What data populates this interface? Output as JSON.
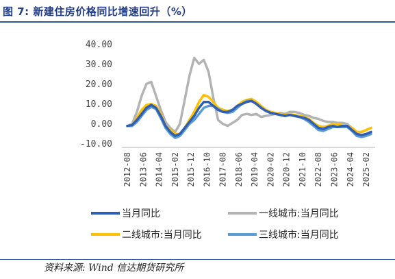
{
  "header": {
    "title": "图 7:  新建住房价格同比增速回升（%）"
  },
  "footer": {
    "source": "资料来源:    Wind  信达期货研究所"
  },
  "chart_data": {
    "type": "line",
    "title": "",
    "xlabel": "",
    "ylabel": "",
    "ylim": [
      -10,
      40
    ],
    "y_ticks": [
      "40.00",
      "30.00",
      "20.00",
      "10.00",
      "0.00",
      "-10.00"
    ],
    "y_tick_values": [
      40,
      30,
      20,
      10,
      0,
      -10
    ],
    "x_tick_labels": [
      "2012-08",
      "2013-06",
      "2014-04",
      "2015-02",
      "2015-12",
      "2016-10",
      "2017-08",
      "2018-06",
      "2019-04",
      "2020-02",
      "2020-12",
      "2021-10",
      "2022-08",
      "2023-06",
      "2024-04",
      "2025-02"
    ],
    "grid": false,
    "legend_position": "bottom",
    "x": [
      "2012-08",
      "2012-11",
      "2013-02",
      "2013-05",
      "2013-08",
      "2013-11",
      "2014-02",
      "2014-05",
      "2014-08",
      "2014-11",
      "2015-02",
      "2015-05",
      "2015-08",
      "2015-11",
      "2016-02",
      "2016-05",
      "2016-08",
      "2016-11",
      "2017-02",
      "2017-05",
      "2017-08",
      "2017-11",
      "2018-02",
      "2018-05",
      "2018-08",
      "2018-11",
      "2019-02",
      "2019-05",
      "2019-08",
      "2019-11",
      "2020-02",
      "2020-05",
      "2020-08",
      "2020-11",
      "2021-02",
      "2021-05",
      "2021-08",
      "2021-11",
      "2022-02",
      "2022-05",
      "2022-08",
      "2022-11",
      "2023-02",
      "2023-05",
      "2023-08",
      "2023-11",
      "2024-02",
      "2024-05",
      "2024-08",
      "2024-11",
      "2025-02",
      "2025-05"
    ],
    "series": [
      {
        "name": "当月同比",
        "color": "#2f5fb3",
        "values": [
          -1,
          -0.5,
          2,
          5,
          8,
          9.5,
          8,
          4,
          -1,
          -4,
          -6,
          -5,
          -2,
          1,
          4,
          8,
          11,
          11,
          9,
          7,
          6,
          6,
          7,
          9,
          10,
          11,
          11.5,
          10,
          8,
          6.5,
          5.5,
          5,
          4.5,
          4,
          4.5,
          4,
          3.5,
          3,
          2,
          0,
          -2,
          -2.5,
          -1.5,
          -1,
          -1.5,
          -1,
          -1,
          -3,
          -5,
          -5.5,
          -5,
          -4
        ]
      },
      {
        "name": "一线城市:当月同比",
        "color": "#b3b3b3",
        "values": [
          -1,
          0,
          6,
          14,
          20,
          21,
          14,
          7,
          1,
          -2,
          -4,
          0,
          12,
          24,
          33,
          30,
          32,
          26,
          13,
          2,
          0,
          -1,
          0.5,
          2,
          4.5,
          5,
          4.5,
          5,
          3.5,
          4,
          4.5,
          5,
          5.5,
          5,
          6,
          6,
          5.5,
          4.5,
          4,
          3,
          2.5,
          1.5,
          1,
          1,
          0.5,
          0.5,
          0,
          -2,
          -4,
          -4,
          -3,
          -2
        ]
      },
      {
        "name": "二线城市:当月同比",
        "color": "#ffc000",
        "values": [
          -1,
          -0.5,
          3,
          7,
          9.5,
          10,
          9,
          5,
          -1,
          -3,
          -5,
          -5,
          -2,
          2,
          6,
          11,
          14.5,
          13.5,
          11,
          8,
          7,
          6.5,
          7,
          9,
          11,
          12,
          12.5,
          11,
          9,
          7,
          6,
          5.5,
          5,
          4.5,
          5,
          4.5,
          4,
          3.5,
          2.5,
          0.5,
          -1,
          -1.5,
          -1,
          0,
          0,
          -0.5,
          -1,
          -2,
          -4,
          -4,
          -3,
          -2
        ]
      },
      {
        "name": "三线城市:当月同比",
        "color": "#5b9bd5",
        "values": [
          -1,
          -1,
          1,
          4,
          7,
          8.5,
          7.5,
          3,
          -2,
          -5,
          -7,
          -6,
          -3,
          0,
          2,
          5,
          8,
          9,
          9,
          7.5,
          6,
          5.5,
          6,
          8,
          10,
          11.5,
          11.5,
          10,
          8,
          6.5,
          5.5,
          5,
          4.5,
          4,
          4.5,
          4,
          3.5,
          2.5,
          1,
          -1,
          -3,
          -3.5,
          -2.5,
          -1.5,
          -1.5,
          -1.5,
          -1.5,
          -3.5,
          -6,
          -6.5,
          -6,
          -5
        ]
      }
    ]
  },
  "legend": {
    "items": [
      {
        "label": "当月同比",
        "color": "#2f5fb3"
      },
      {
        "label": "一线城市:当月同比",
        "color": "#b3b3b3"
      },
      {
        "label": "二线城市:当月同比",
        "color": "#ffc000"
      },
      {
        "label": "三线城市:当月同比",
        "color": "#5b9bd5"
      }
    ]
  }
}
